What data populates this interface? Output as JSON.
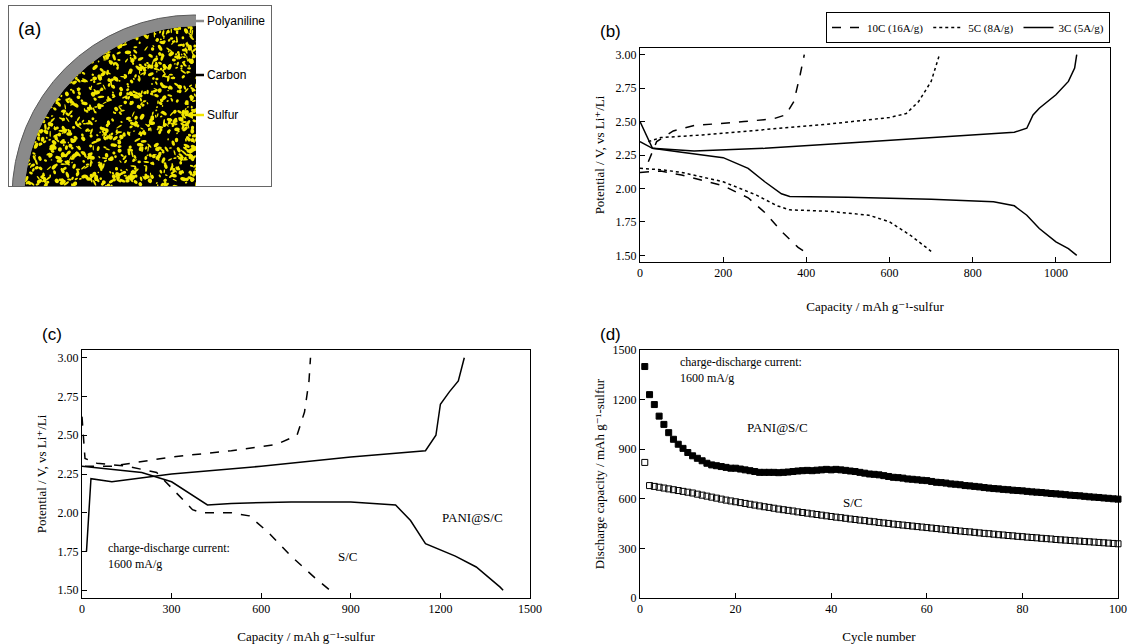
{
  "diagram": {
    "letter": "(a)",
    "components": [
      {
        "label": "Polyaniline",
        "color": "#8a8a8a"
      },
      {
        "label": "Carbon",
        "color": "#000000"
      },
      {
        "label": "Sulfur",
        "color": "#f2e600"
      }
    ]
  },
  "chart_data": [
    {
      "letter": "(b)",
      "type": "line",
      "x_label": "Capacity / mAh g⁻¹-sulfur",
      "y_label": "Potential / V, vs Li⁺/Li",
      "xlim": [
        0,
        1130
      ],
      "xticks": [
        0,
        200,
        400,
        600,
        800,
        1000
      ],
      "ylim": [
        1.45,
        3.05
      ],
      "yticks": [
        {
          "value": 1.5,
          "label": "1.50"
        },
        {
          "value": 1.75,
          "label": "1.75"
        },
        {
          "value": 2,
          "label": "2.00"
        },
        {
          "value": 2.25,
          "label": "2.25"
        },
        {
          "value": 2.5,
          "label": "2.50"
        },
        {
          "value": 2.75,
          "label": "2.75"
        },
        {
          "value": 3,
          "label": "3.00"
        }
      ],
      "grid": false,
      "legend": "top",
      "series": [
        {
          "name": "10C (16A/g)",
          "color": "#000000",
          "line_style": "dash",
          "x": [
            0,
            50,
            100,
            200,
            260,
            300,
            340,
            380,
            410,
            null,
            20,
            40,
            80,
            130,
            250,
            320,
            350,
            370,
            385,
            395
          ],
          "values": [
            2.12,
            2.13,
            2.1,
            2.02,
            1.93,
            1.82,
            1.68,
            1.56,
            1.5,
            null,
            2.2,
            2.35,
            2.43,
            2.47,
            2.5,
            2.52,
            2.55,
            2.65,
            2.85,
            3.0
          ]
        },
        {
          "name": "5C (8A/g)",
          "color": "#000000",
          "line_style": "dot",
          "x": [
            0,
            50,
            100,
            200,
            280,
            330,
            360,
            450,
            550,
            600,
            650,
            700,
            null,
            20,
            50,
            150,
            300,
            450,
            600,
            640,
            670,
            700,
            715,
            720
          ],
          "values": [
            2.15,
            2.14,
            2.12,
            2.05,
            1.95,
            1.87,
            1.84,
            1.83,
            1.8,
            1.75,
            1.65,
            1.53,
            null,
            2.35,
            2.38,
            2.4,
            2.44,
            2.48,
            2.53,
            2.56,
            2.65,
            2.8,
            2.95,
            3.0
          ]
        },
        {
          "name": "3C (5A/g)",
          "color": "#000000",
          "line_style": "solid",
          "x": [
            0,
            30,
            100,
            200,
            260,
            300,
            340,
            360,
            500,
            700,
            850,
            900,
            930,
            960,
            1000,
            1030,
            1050,
            null,
            0,
            30,
            130,
            300,
            500,
            700,
            900,
            930,
            945,
            960,
            1000,
            1030,
            1045,
            1050
          ],
          "values": [
            2.5,
            2.3,
            2.27,
            2.23,
            2.15,
            2.05,
            1.96,
            1.94,
            1.935,
            1.92,
            1.9,
            1.87,
            1.8,
            1.7,
            1.6,
            1.55,
            1.5,
            null,
            2.35,
            2.3,
            2.28,
            2.3,
            2.34,
            2.38,
            2.42,
            2.45,
            2.55,
            2.6,
            2.7,
            2.8,
            2.9,
            3.0
          ]
        }
      ]
    },
    {
      "letter": "(c)",
      "type": "line",
      "x_label": "Capacity / mAh g⁻¹-sulfur",
      "y_label": "Potential / V, vs Li⁺/Li",
      "xlim": [
        0,
        1500
      ],
      "xticks": [
        0,
        300,
        600,
        900,
        1200,
        1500
      ],
      "ylim": [
        1.45,
        3.05
      ],
      "yticks": [
        {
          "value": 1.5,
          "label": "1.50"
        },
        {
          "value": 1.75,
          "label": "1.75"
        },
        {
          "value": 2,
          "label": "2.00"
        },
        {
          "value": 2.25,
          "label": "2.25"
        },
        {
          "value": 2.5,
          "label": "2.50"
        },
        {
          "value": 2.75,
          "label": "2.75"
        },
        {
          "value": 3,
          "label": "3.00"
        }
      ],
      "grid": false,
      "annotations": [
        {
          "lines": [
            "charge-discharge current:",
            "1600 mA/g"
          ],
          "x": 80,
          "y": 1.72
        }
      ],
      "series": [
        {
          "name": "S/C",
          "color": "#000000",
          "line_style": "dash",
          "label": [
            850,
            1.72
          ],
          "x": [
            0,
            10,
            50,
            150,
            250,
            320,
            370,
            400,
            500,
            560,
            620,
            700,
            780,
            830,
            null,
            10,
            100,
            300,
            500,
            650,
            720,
            745,
            760,
            765
          ],
          "values": [
            2.62,
            2.35,
            2.32,
            2.3,
            2.26,
            2.12,
            2.02,
            2.0,
            2.0,
            1.98,
            1.88,
            1.72,
            1.58,
            1.5,
            null,
            2.3,
            2.3,
            2.36,
            2.4,
            2.44,
            2.5,
            2.65,
            2.85,
            3.0
          ]
        },
        {
          "name": "PANI@S/C",
          "color": "#000000",
          "line_style": "solid",
          "label": [
            1200,
            1.97
          ],
          "x": [
            0,
            50,
            200,
            300,
            380,
            420,
            500,
            700,
            900,
            1050,
            1100,
            1150,
            1250,
            1320,
            1400,
            1410,
            null,
            15,
            30,
            100,
            300,
            600,
            900,
            1150,
            1185,
            1200,
            1230,
            1260,
            1280
          ],
          "values": [
            2.3,
            2.29,
            2.26,
            2.2,
            2.1,
            2.05,
            2.06,
            2.07,
            2.07,
            2.05,
            1.95,
            1.8,
            1.72,
            1.65,
            1.52,
            1.5,
            null,
            1.75,
            2.22,
            2.2,
            2.25,
            2.3,
            2.36,
            2.4,
            2.5,
            2.7,
            2.78,
            2.85,
            3.0
          ]
        }
      ]
    },
    {
      "letter": "(d)",
      "type": "scatter",
      "x_label": "Cycle number",
      "y_label": "Discharge capacity / mAh g⁻¹-sulfur",
      "xlim": [
        0,
        100
      ],
      "xticks": [
        0,
        20,
        40,
        60,
        80,
        100
      ],
      "ylim": [
        0,
        1500
      ],
      "yticks": [
        0,
        300,
        600,
        900,
        1200,
        1500
      ],
      "grid": false,
      "annotations": [
        {
          "lines": [
            "charge-discharge current:",
            "1600 mA/g"
          ],
          "x": 8,
          "y": 1380
        }
      ],
      "x": [
        1,
        2,
        3,
        4,
        5,
        6,
        7,
        8,
        9,
        10,
        11,
        12,
        13,
        14,
        15,
        16,
        17,
        18,
        19,
        20,
        21,
        22,
        23,
        24,
        25,
        26,
        27,
        28,
        29,
        30,
        31,
        32,
        33,
        34,
        35,
        36,
        37,
        38,
        39,
        40,
        41,
        42,
        43,
        44,
        45,
        46,
        47,
        48,
        49,
        50,
        51,
        52,
        53,
        54,
        55,
        56,
        57,
        58,
        59,
        60,
        61,
        62,
        63,
        64,
        65,
        66,
        67,
        68,
        69,
        70,
        71,
        72,
        73,
        74,
        75,
        76,
        77,
        78,
        79,
        80,
        81,
        82,
        83,
        84,
        85,
        86,
        87,
        88,
        89,
        90,
        91,
        92,
        93,
        94,
        95,
        96,
        97,
        98,
        99,
        100
      ],
      "series": [
        {
          "name": "PANI@S/C",
          "color": "#000000",
          "marker": "square",
          "label": [
            22,
            1030
          ],
          "values": [
            1400,
            1230,
            1170,
            1100,
            1050,
            1000,
            960,
            930,
            905,
            880,
            860,
            845,
            830,
            815,
            805,
            800,
            795,
            790,
            785,
            785,
            780,
            775,
            770,
            765,
            760,
            760,
            760,
            760,
            758,
            760,
            762,
            765,
            768,
            770,
            772,
            770,
            773,
            775,
            778,
            775,
            778,
            775,
            772,
            768,
            765,
            760,
            755,
            750,
            748,
            745,
            740,
            735,
            730,
            728,
            725,
            720,
            718,
            715,
            712,
            710,
            705,
            700,
            698,
            695,
            690,
            688,
            685,
            680,
            678,
            675,
            672,
            668,
            665,
            662,
            660,
            657,
            655,
            652,
            650,
            648,
            645,
            642,
            640,
            638,
            635,
            632,
            630,
            628,
            625,
            622,
            620,
            618,
            615,
            612,
            610,
            608,
            605,
            603,
            600,
            598
          ]
        },
        {
          "name": "S/C",
          "color": "#000000",
          "marker": "square-open",
          "label": [
            42,
            575
          ],
          "values": [
            820,
            680,
            675,
            670,
            665,
            660,
            655,
            650,
            645,
            640,
            635,
            628,
            622,
            616,
            610,
            604,
            598,
            592,
            587,
            582,
            577,
            572,
            567,
            562,
            557,
            552,
            548,
            543,
            538,
            534,
            530,
            526,
            521,
            517,
            513,
            509,
            505,
            501,
            497,
            493,
            489,
            486,
            482,
            478,
            475,
            471,
            468,
            464,
            461,
            457,
            454,
            451,
            447,
            444,
            441,
            438,
            435,
            432,
            429,
            426,
            423,
            420,
            417,
            414,
            411,
            408,
            405,
            402,
            400,
            397,
            394,
            391,
            389,
            386,
            383,
            381,
            378,
            376,
            373,
            371,
            368,
            366,
            364,
            361,
            359,
            357,
            354,
            352,
            350,
            348,
            346,
            344,
            342,
            340,
            338,
            336,
            334,
            332,
            330,
            328
          ]
        }
      ]
    }
  ]
}
